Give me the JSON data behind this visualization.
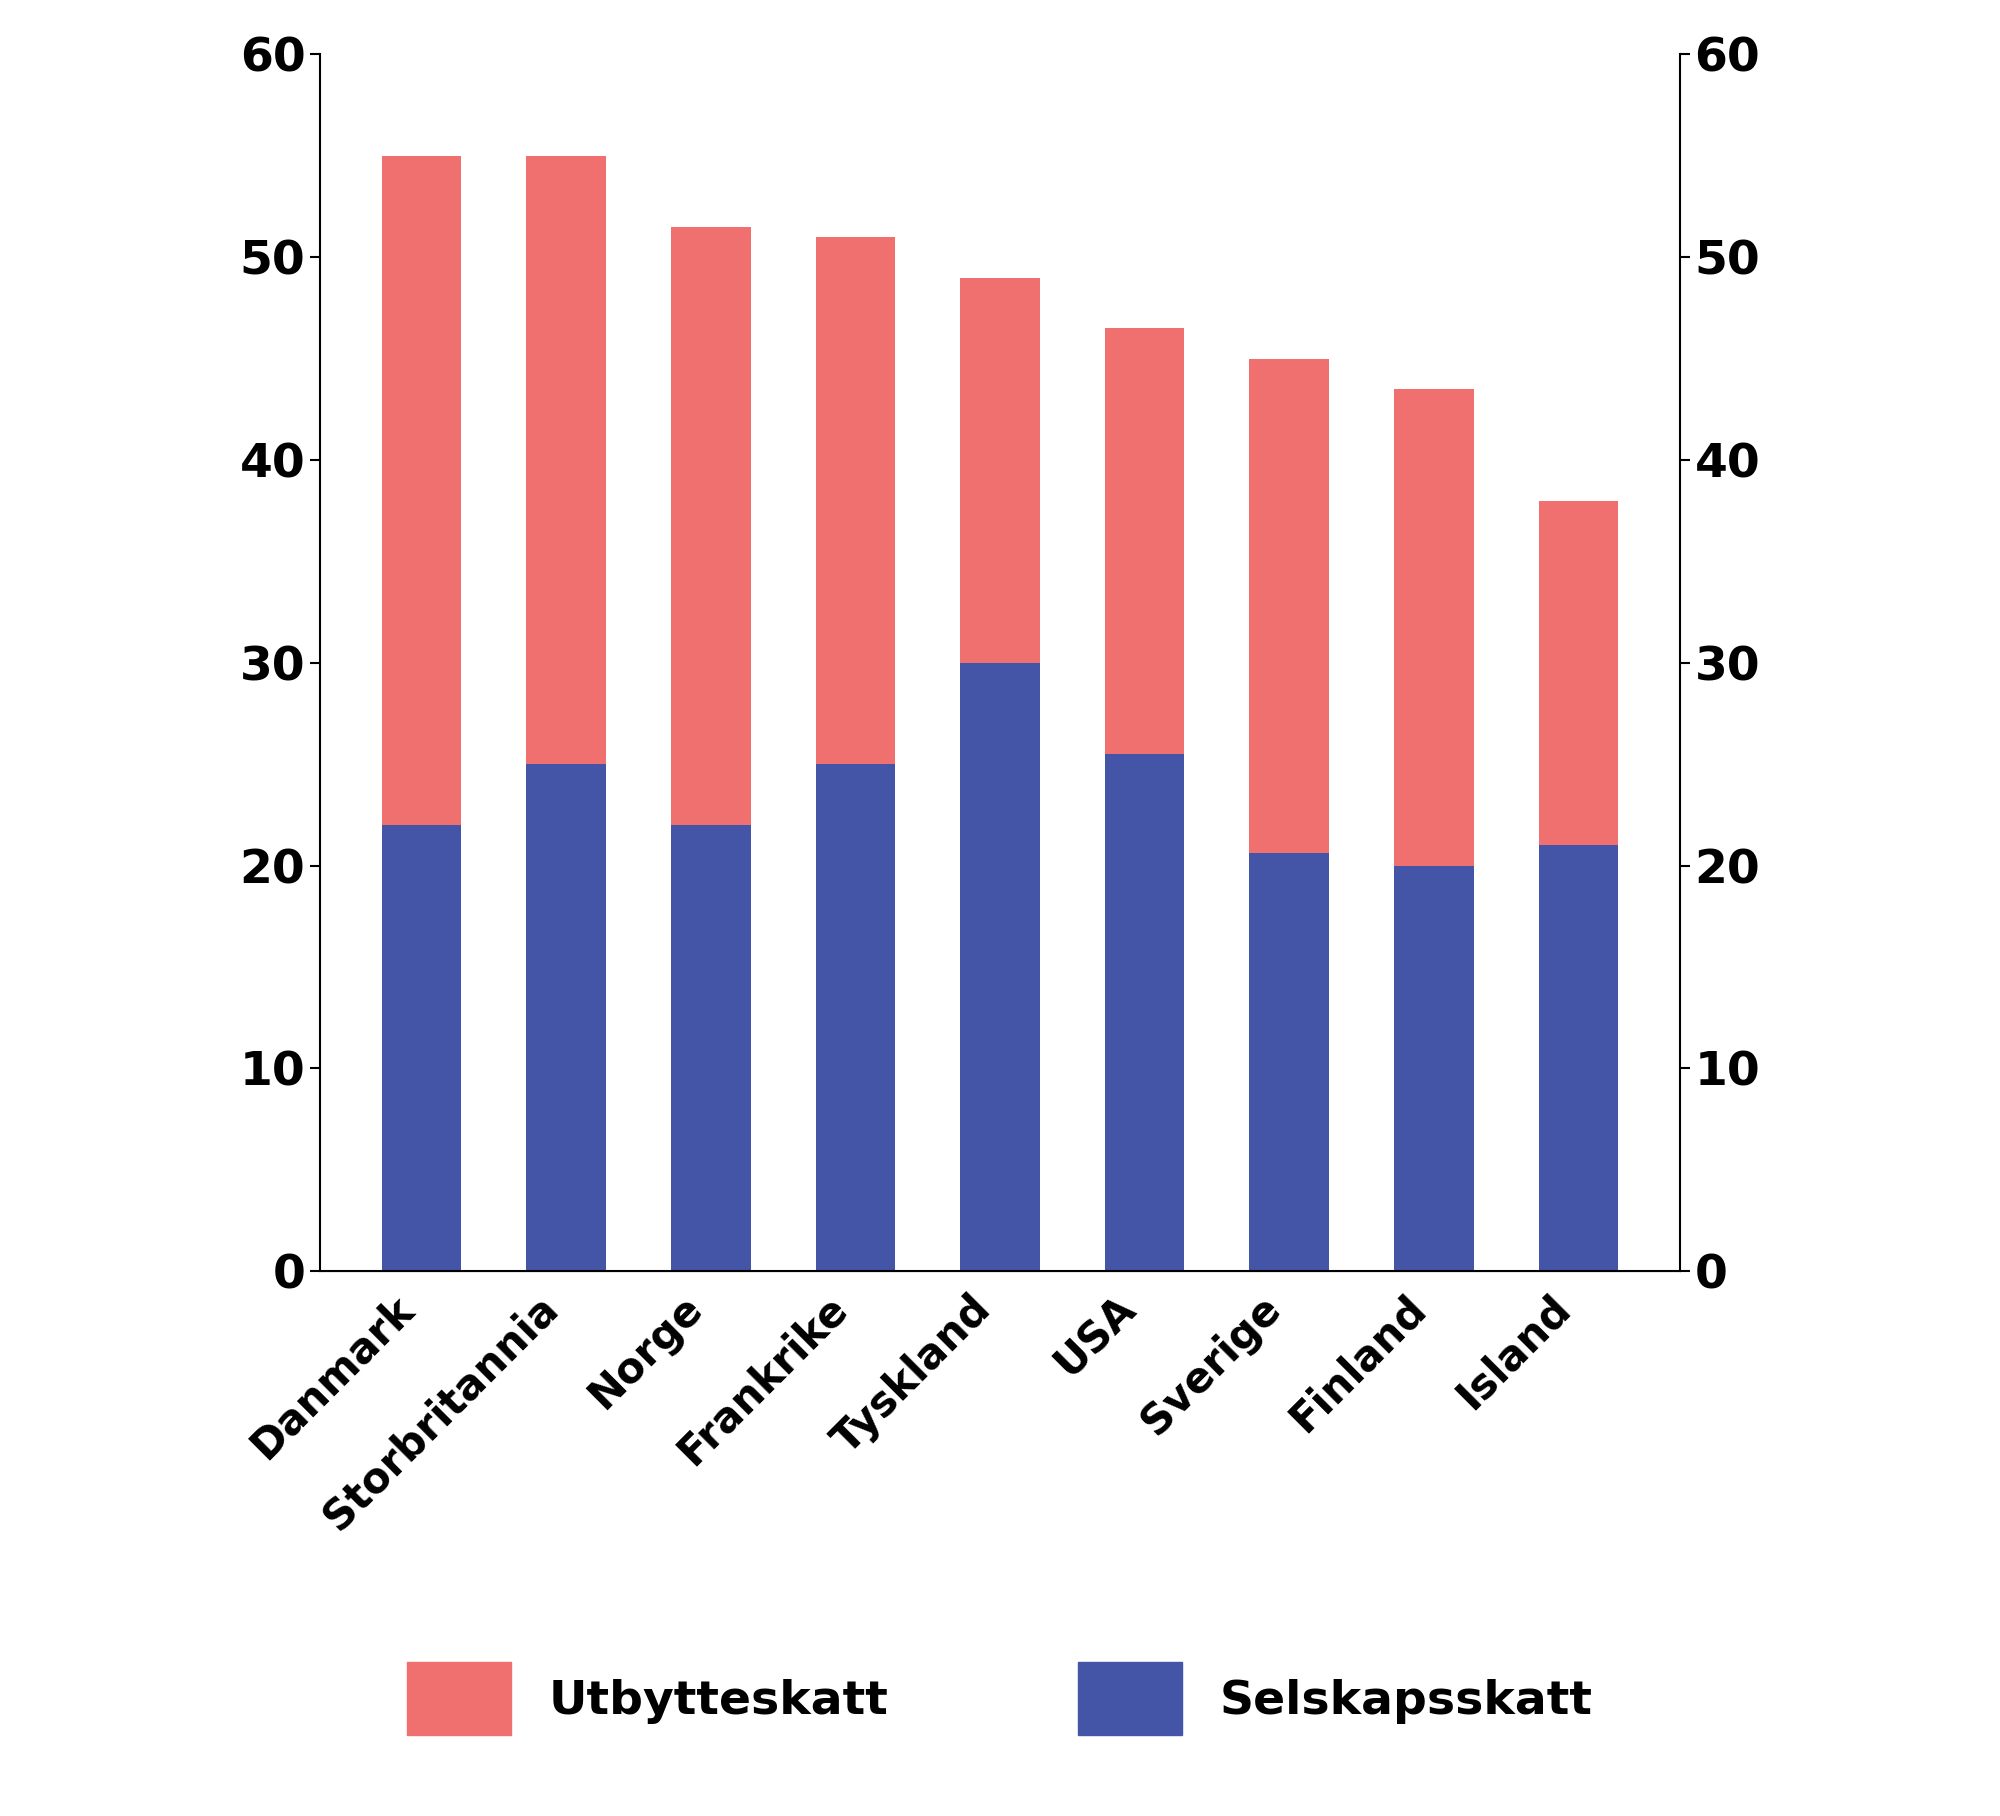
{
  "categories": [
    "Danmark",
    "Storbritannia",
    "Norge",
    "Frankrike",
    "Tyskland",
    "USA",
    "Sverige",
    "Finland",
    "Island"
  ],
  "selskapsskatt": [
    22.0,
    25.0,
    22.0,
    25.0,
    30.0,
    25.5,
    20.6,
    20.0,
    21.0
  ],
  "utbytteskatt": [
    33.0,
    30.0,
    29.5,
    26.0,
    19.0,
    21.0,
    24.4,
    23.5,
    17.0
  ],
  "color_utbytte": "#f07070",
  "color_selskap": "#4455a8",
  "ylim": [
    0,
    60
  ],
  "yticks": [
    0,
    10,
    20,
    30,
    40,
    50,
    60
  ],
  "legend_utbytte": "Utbytteskatt",
  "legend_selskap": "Selskapsskatt",
  "bar_width": 0.55,
  "background_color": "#ffffff",
  "tick_fontsize": 34,
  "legend_fontsize": 34,
  "label_fontsize": 30
}
